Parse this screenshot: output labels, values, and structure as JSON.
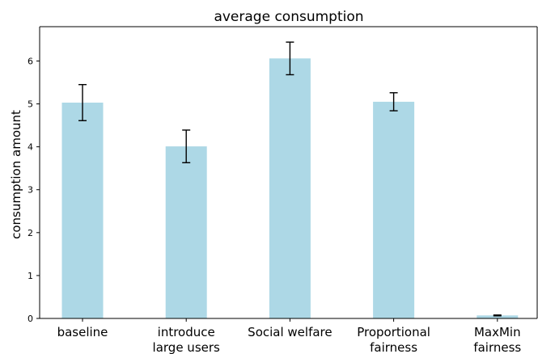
{
  "chart_data": {
    "type": "bar",
    "title": "average consumption",
    "xlabel": "",
    "ylabel": "consumption amount",
    "categories": [
      [
        "baseline"
      ],
      [
        "introduce",
        "large users"
      ],
      [
        "Social welfare"
      ],
      [
        "Proportional",
        "fairness"
      ],
      [
        "MaxMin",
        "fairness"
      ]
    ],
    "values": [
      5.03,
      4.01,
      6.06,
      5.05,
      0.07
    ],
    "errors": [
      0.42,
      0.38,
      0.38,
      0.21,
      0.01
    ],
    "yticks": [
      0,
      1,
      2,
      3,
      4,
      5,
      6
    ],
    "ylim": [
      0,
      6.8
    ],
    "bar_color": "#add8e6",
    "error_color": "#000000",
    "grid": false,
    "legend": "none"
  }
}
